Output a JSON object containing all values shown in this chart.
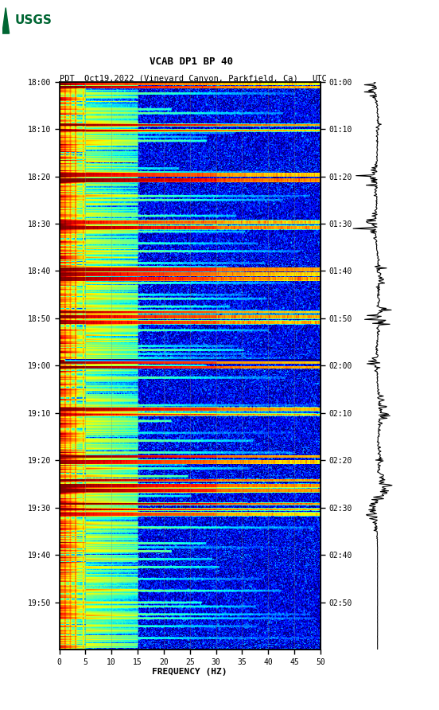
{
  "title_line1": "VCAB DP1 BP 40",
  "title_line2_left": "PDT",
  "title_line2_mid": "Oct19,2022 (Vineyard Canyon, Parkfield, Ca)",
  "title_line2_right": "UTC",
  "xlabel": "FREQUENCY (HZ)",
  "left_yticks": [
    "18:00",
    "18:10",
    "18:20",
    "18:30",
    "18:40",
    "18:50",
    "19:00",
    "19:10",
    "19:20",
    "19:30",
    "19:40",
    "19:50"
  ],
  "right_yticks": [
    "01:00",
    "01:10",
    "01:20",
    "01:30",
    "01:40",
    "01:50",
    "02:00",
    "02:10",
    "02:20",
    "02:30",
    "02:40",
    "02:50"
  ],
  "xticks": [
    0,
    5,
    10,
    15,
    20,
    25,
    30,
    35,
    40,
    45,
    50
  ],
  "freq_max": 50,
  "n_time": 720,
  "n_freq": 500,
  "colormap": "jet",
  "seed": 42,
  "usgs_green": "#006633",
  "vgrid_color": "#888870",
  "vgrid_alpha": 0.55,
  "event_times": [
    3,
    7,
    55,
    62,
    118,
    125,
    178,
    185,
    238,
    244,
    250,
    292,
    298,
    305,
    355,
    362,
    415,
    422,
    475,
    482,
    505,
    512,
    518,
    535,
    542,
    548
  ],
  "dark_rows": [
    352,
    353,
    354
  ],
  "waveform_lw": 0.8
}
